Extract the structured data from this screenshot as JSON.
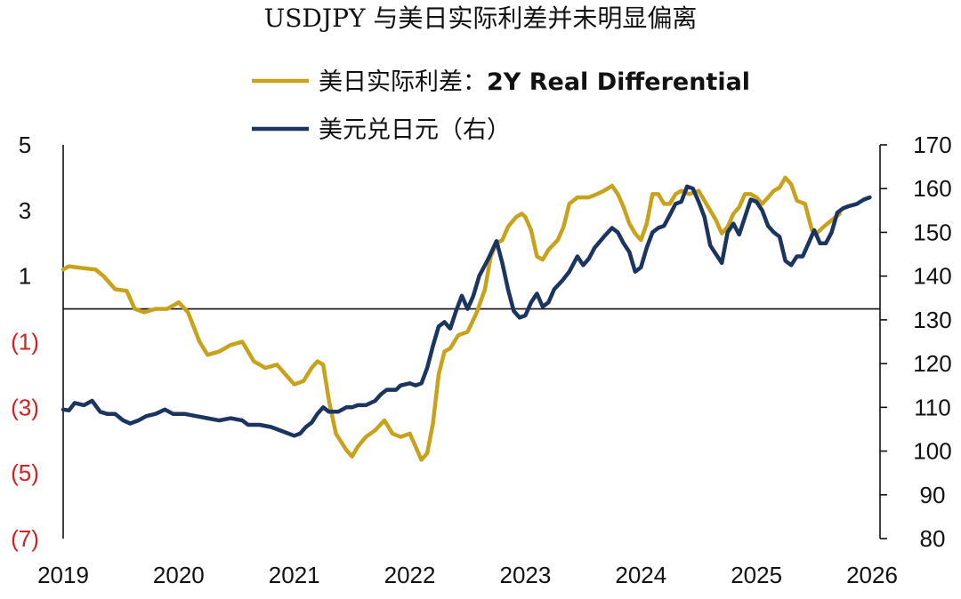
{
  "chart_data": {
    "type": "line",
    "title": "USDJPY 与美日实际利差并未明显偏离",
    "legend_position": "top",
    "x_axis": {
      "range": [
        2019.0,
        2026.0
      ],
      "ticks": [
        "2019",
        "2020",
        "2021",
        "2022",
        "2023",
        "2024",
        "2025",
        "2026"
      ]
    },
    "y_left": {
      "range": [
        -7,
        5
      ],
      "ticks": [
        {
          "value": 5,
          "label": "5",
          "negative": false
        },
        {
          "value": 3,
          "label": "3",
          "negative": false
        },
        {
          "value": 1,
          "label": "1",
          "negative": false
        },
        {
          "value": -1,
          "label": "(1)",
          "negative": true
        },
        {
          "value": -3,
          "label": "(3)",
          "negative": true
        },
        {
          "value": -5,
          "label": "(5)",
          "negative": true
        },
        {
          "value": -7,
          "label": "(7)",
          "negative": true
        }
      ],
      "zero_line": 0
    },
    "y_right": {
      "range": [
        80,
        170
      ],
      "ticks": [
        {
          "value": 170,
          "label": "170"
        },
        {
          "value": 160,
          "label": "160"
        },
        {
          "value": 150,
          "label": "150"
        },
        {
          "value": 140,
          "label": "140"
        },
        {
          "value": 130,
          "label": "130"
        },
        {
          "value": 120,
          "label": "120"
        },
        {
          "value": 110,
          "label": "110"
        },
        {
          "value": 100,
          "label": "100"
        },
        {
          "value": 90,
          "label": "90"
        },
        {
          "value": 80,
          "label": "80"
        }
      ]
    },
    "series": [
      {
        "name": "美日实际利差：2Y Real Differential",
        "legend_prefix": "美日实际利差：",
        "legend_suffix": "2Y Real Differential",
        "axis": "left",
        "color": "#c8a21a",
        "points": [
          [
            2019.0,
            1.2
          ],
          [
            2019.05,
            1.3
          ],
          [
            2019.15,
            1.25
          ],
          [
            2019.28,
            1.2
          ],
          [
            2019.35,
            1.0
          ],
          [
            2019.45,
            0.6
          ],
          [
            2019.55,
            0.55
          ],
          [
            2019.62,
            0.0
          ],
          [
            2019.7,
            -0.1
          ],
          [
            2019.8,
            0.0
          ],
          [
            2019.9,
            0.0
          ],
          [
            2020.0,
            0.2
          ],
          [
            2020.08,
            -0.1
          ],
          [
            2020.18,
            -1.0
          ],
          [
            2020.25,
            -1.4
          ],
          [
            2020.35,
            -1.3
          ],
          [
            2020.45,
            -1.1
          ],
          [
            2020.55,
            -1.0
          ],
          [
            2020.65,
            -1.6
          ],
          [
            2020.75,
            -1.8
          ],
          [
            2020.85,
            -1.7
          ],
          [
            2020.95,
            -2.1
          ],
          [
            2021.0,
            -2.3
          ],
          [
            2021.08,
            -2.2
          ],
          [
            2021.15,
            -1.8
          ],
          [
            2021.2,
            -1.6
          ],
          [
            2021.25,
            -1.7
          ],
          [
            2021.3,
            -2.8
          ],
          [
            2021.36,
            -3.8
          ],
          [
            2021.45,
            -4.3
          ],
          [
            2021.5,
            -4.5
          ],
          [
            2021.55,
            -4.2
          ],
          [
            2021.62,
            -3.9
          ],
          [
            2021.7,
            -3.7
          ],
          [
            2021.78,
            -3.4
          ],
          [
            2021.85,
            -3.8
          ],
          [
            2021.92,
            -3.9
          ],
          [
            2022.0,
            -3.8
          ],
          [
            2022.05,
            -4.2
          ],
          [
            2022.1,
            -4.6
          ],
          [
            2022.15,
            -4.4
          ],
          [
            2022.2,
            -3.5
          ],
          [
            2022.25,
            -2.0
          ],
          [
            2022.3,
            -1.3
          ],
          [
            2022.35,
            -1.2
          ],
          [
            2022.42,
            -0.8
          ],
          [
            2022.5,
            -0.7
          ],
          [
            2022.58,
            -0.1
          ],
          [
            2022.65,
            0.6
          ],
          [
            2022.7,
            1.6
          ],
          [
            2022.75,
            2.0
          ],
          [
            2022.8,
            2.1
          ],
          [
            2022.85,
            2.5
          ],
          [
            2022.92,
            2.8
          ],
          [
            2022.97,
            2.9
          ],
          [
            2023.0,
            2.8
          ],
          [
            2023.05,
            2.4
          ],
          [
            2023.1,
            1.6
          ],
          [
            2023.15,
            1.5
          ],
          [
            2023.2,
            1.8
          ],
          [
            2023.28,
            2.1
          ],
          [
            2023.33,
            2.5
          ],
          [
            2023.38,
            3.2
          ],
          [
            2023.45,
            3.4
          ],
          [
            2023.55,
            3.4
          ],
          [
            2023.62,
            3.5
          ],
          [
            2023.68,
            3.6
          ],
          [
            2023.75,
            3.75
          ],
          [
            2023.8,
            3.5
          ],
          [
            2023.85,
            3.1
          ],
          [
            2023.9,
            2.6
          ],
          [
            2023.95,
            2.3
          ],
          [
            2024.0,
            2.1
          ],
          [
            2024.05,
            2.6
          ],
          [
            2024.1,
            3.5
          ],
          [
            2024.15,
            3.5
          ],
          [
            2024.2,
            3.2
          ],
          [
            2024.25,
            3.2
          ],
          [
            2024.3,
            3.5
          ],
          [
            2024.35,
            3.6
          ],
          [
            2024.42,
            3.5
          ],
          [
            2024.5,
            3.6
          ],
          [
            2024.55,
            3.3
          ],
          [
            2024.6,
            3.0
          ],
          [
            2024.65,
            2.7
          ],
          [
            2024.7,
            2.3
          ],
          [
            2024.75,
            2.5
          ],
          [
            2024.8,
            2.9
          ],
          [
            2024.85,
            3.1
          ],
          [
            2024.9,
            3.5
          ],
          [
            2024.95,
            3.5
          ],
          [
            2025.0,
            3.4
          ],
          [
            2025.05,
            3.2
          ],
          [
            2025.1,
            3.4
          ],
          [
            2025.15,
            3.6
          ],
          [
            2025.2,
            3.7
          ],
          [
            2025.25,
            4.0
          ],
          [
            2025.3,
            3.8
          ],
          [
            2025.35,
            3.3
          ],
          [
            2025.42,
            3.2
          ],
          [
            2025.48,
            2.4
          ],
          [
            2025.52,
            2.3
          ],
          [
            2025.58,
            2.5
          ],
          [
            2025.65,
            2.7
          ],
          [
            2025.72,
            2.9
          ]
        ]
      },
      {
        "name": "美元兑日元（右）",
        "legend_prefix": "美元兑日元（右）",
        "legend_suffix": "",
        "axis": "right",
        "color": "#1b3460",
        "points": [
          [
            2019.0,
            109.5
          ],
          [
            2019.05,
            109.3
          ],
          [
            2019.1,
            111.0
          ],
          [
            2019.18,
            110.5
          ],
          [
            2019.25,
            111.5
          ],
          [
            2019.32,
            109.0
          ],
          [
            2019.38,
            108.5
          ],
          [
            2019.45,
            108.5
          ],
          [
            2019.52,
            107.0
          ],
          [
            2019.58,
            106.3
          ],
          [
            2019.65,
            107.0
          ],
          [
            2019.72,
            108.0
          ],
          [
            2019.8,
            108.5
          ],
          [
            2019.88,
            109.5
          ],
          [
            2019.95,
            108.5
          ],
          [
            2020.05,
            108.5
          ],
          [
            2020.15,
            108.0
          ],
          [
            2020.25,
            107.5
          ],
          [
            2020.35,
            107.0
          ],
          [
            2020.45,
            107.5
          ],
          [
            2020.55,
            107.0
          ],
          [
            2020.6,
            106.0
          ],
          [
            2020.7,
            106.0
          ],
          [
            2020.8,
            105.5
          ],
          [
            2020.9,
            104.5
          ],
          [
            2021.0,
            103.5
          ],
          [
            2021.05,
            104.0
          ],
          [
            2021.1,
            105.5
          ],
          [
            2021.15,
            106.5
          ],
          [
            2021.2,
            108.5
          ],
          [
            2021.25,
            110.0
          ],
          [
            2021.3,
            109.0
          ],
          [
            2021.38,
            109.0
          ],
          [
            2021.45,
            110.0
          ],
          [
            2021.5,
            110.0
          ],
          [
            2021.55,
            110.5
          ],
          [
            2021.62,
            110.5
          ],
          [
            2021.7,
            111.5
          ],
          [
            2021.75,
            113.0
          ],
          [
            2021.8,
            114.0
          ],
          [
            2021.88,
            114.0
          ],
          [
            2021.92,
            115.0
          ],
          [
            2022.0,
            115.5
          ],
          [
            2022.05,
            115.0
          ],
          [
            2022.1,
            115.5
          ],
          [
            2022.15,
            119.0
          ],
          [
            2022.2,
            124.0
          ],
          [
            2022.25,
            128.5
          ],
          [
            2022.3,
            129.5
          ],
          [
            2022.35,
            128.0
          ],
          [
            2022.4,
            132.0
          ],
          [
            2022.45,
            135.5
          ],
          [
            2022.5,
            132.5
          ],
          [
            2022.55,
            135.5
          ],
          [
            2022.6,
            140.0
          ],
          [
            2022.68,
            144.0
          ],
          [
            2022.75,
            148.0
          ],
          [
            2022.8,
            143.0
          ],
          [
            2022.85,
            137.0
          ],
          [
            2022.9,
            132.0
          ],
          [
            2022.95,
            130.5
          ],
          [
            2023.0,
            131.0
          ],
          [
            2023.05,
            134.0
          ],
          [
            2023.1,
            136.0
          ],
          [
            2023.15,
            133.0
          ],
          [
            2023.2,
            134.0
          ],
          [
            2023.25,
            137.0
          ],
          [
            2023.32,
            139.0
          ],
          [
            2023.38,
            141.0
          ],
          [
            2023.45,
            144.5
          ],
          [
            2023.5,
            142.5
          ],
          [
            2023.55,
            144.0
          ],
          [
            2023.6,
            146.5
          ],
          [
            2023.68,
            149.0
          ],
          [
            2023.75,
            151.0
          ],
          [
            2023.8,
            150.0
          ],
          [
            2023.85,
            147.5
          ],
          [
            2023.9,
            145.5
          ],
          [
            2023.95,
            141.0
          ],
          [
            2024.0,
            142.0
          ],
          [
            2024.05,
            146.5
          ],
          [
            2024.1,
            150.0
          ],
          [
            2024.15,
            151.0
          ],
          [
            2024.2,
            151.5
          ],
          [
            2024.25,
            154.0
          ],
          [
            2024.3,
            156.5
          ],
          [
            2024.35,
            157.0
          ],
          [
            2024.4,
            160.5
          ],
          [
            2024.45,
            160.0
          ],
          [
            2024.5,
            157.0
          ],
          [
            2024.55,
            153.5
          ],
          [
            2024.6,
            147.0
          ],
          [
            2024.65,
            145.0
          ],
          [
            2024.7,
            143.0
          ],
          [
            2024.75,
            150.0
          ],
          [
            2024.8,
            152.0
          ],
          [
            2024.85,
            149.5
          ],
          [
            2024.9,
            153.5
          ],
          [
            2024.95,
            157.5
          ],
          [
            2025.0,
            157.0
          ],
          [
            2025.05,
            155.0
          ],
          [
            2025.1,
            151.5
          ],
          [
            2025.15,
            150.0
          ],
          [
            2025.2,
            149.0
          ],
          [
            2025.25,
            143.5
          ],
          [
            2025.3,
            142.5
          ],
          [
            2025.35,
            144.5
          ],
          [
            2025.4,
            144.5
          ],
          [
            2025.45,
            147.5
          ],
          [
            2025.5,
            150.5
          ],
          [
            2025.55,
            147.5
          ],
          [
            2025.6,
            147.5
          ],
          [
            2025.65,
            150.0
          ],
          [
            2025.7,
            154.5
          ],
          [
            2025.75,
            155.5
          ],
          [
            2025.8,
            156.0
          ],
          [
            2025.87,
            156.5
          ],
          [
            2025.93,
            157.5
          ],
          [
            2025.98,
            158.0
          ]
        ]
      }
    ]
  }
}
